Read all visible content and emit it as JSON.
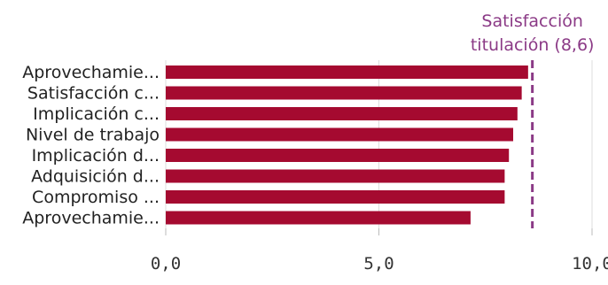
{
  "chart_data": {
    "type": "bar",
    "orientation": "horizontal",
    "categories": [
      "Aprovechamie...",
      "Satisfacción c...",
      "Implicación c...",
      "Nivel de trabajo",
      "Implicación d...",
      "Adquisición d...",
      "Compromiso ...",
      "Aprovechamie..."
    ],
    "values": [
      8.5,
      8.35,
      8.25,
      8.15,
      8.05,
      7.95,
      7.95,
      7.15
    ],
    "xlim": [
      0,
      10
    ],
    "ticks": [
      "0,0",
      "5,0",
      "10,0"
    ],
    "tick_values": [
      0,
      5,
      10
    ],
    "grid": true,
    "reference_line": {
      "value": 8.6,
      "label_lines": [
        "Satisfacción",
        "titulación (8,6)"
      ]
    },
    "title": "",
    "xlabel": "",
    "ylabel": ""
  },
  "colors": {
    "bar": "#a50a30",
    "reference": "#8b3a86",
    "grid": "#dddddd"
  }
}
